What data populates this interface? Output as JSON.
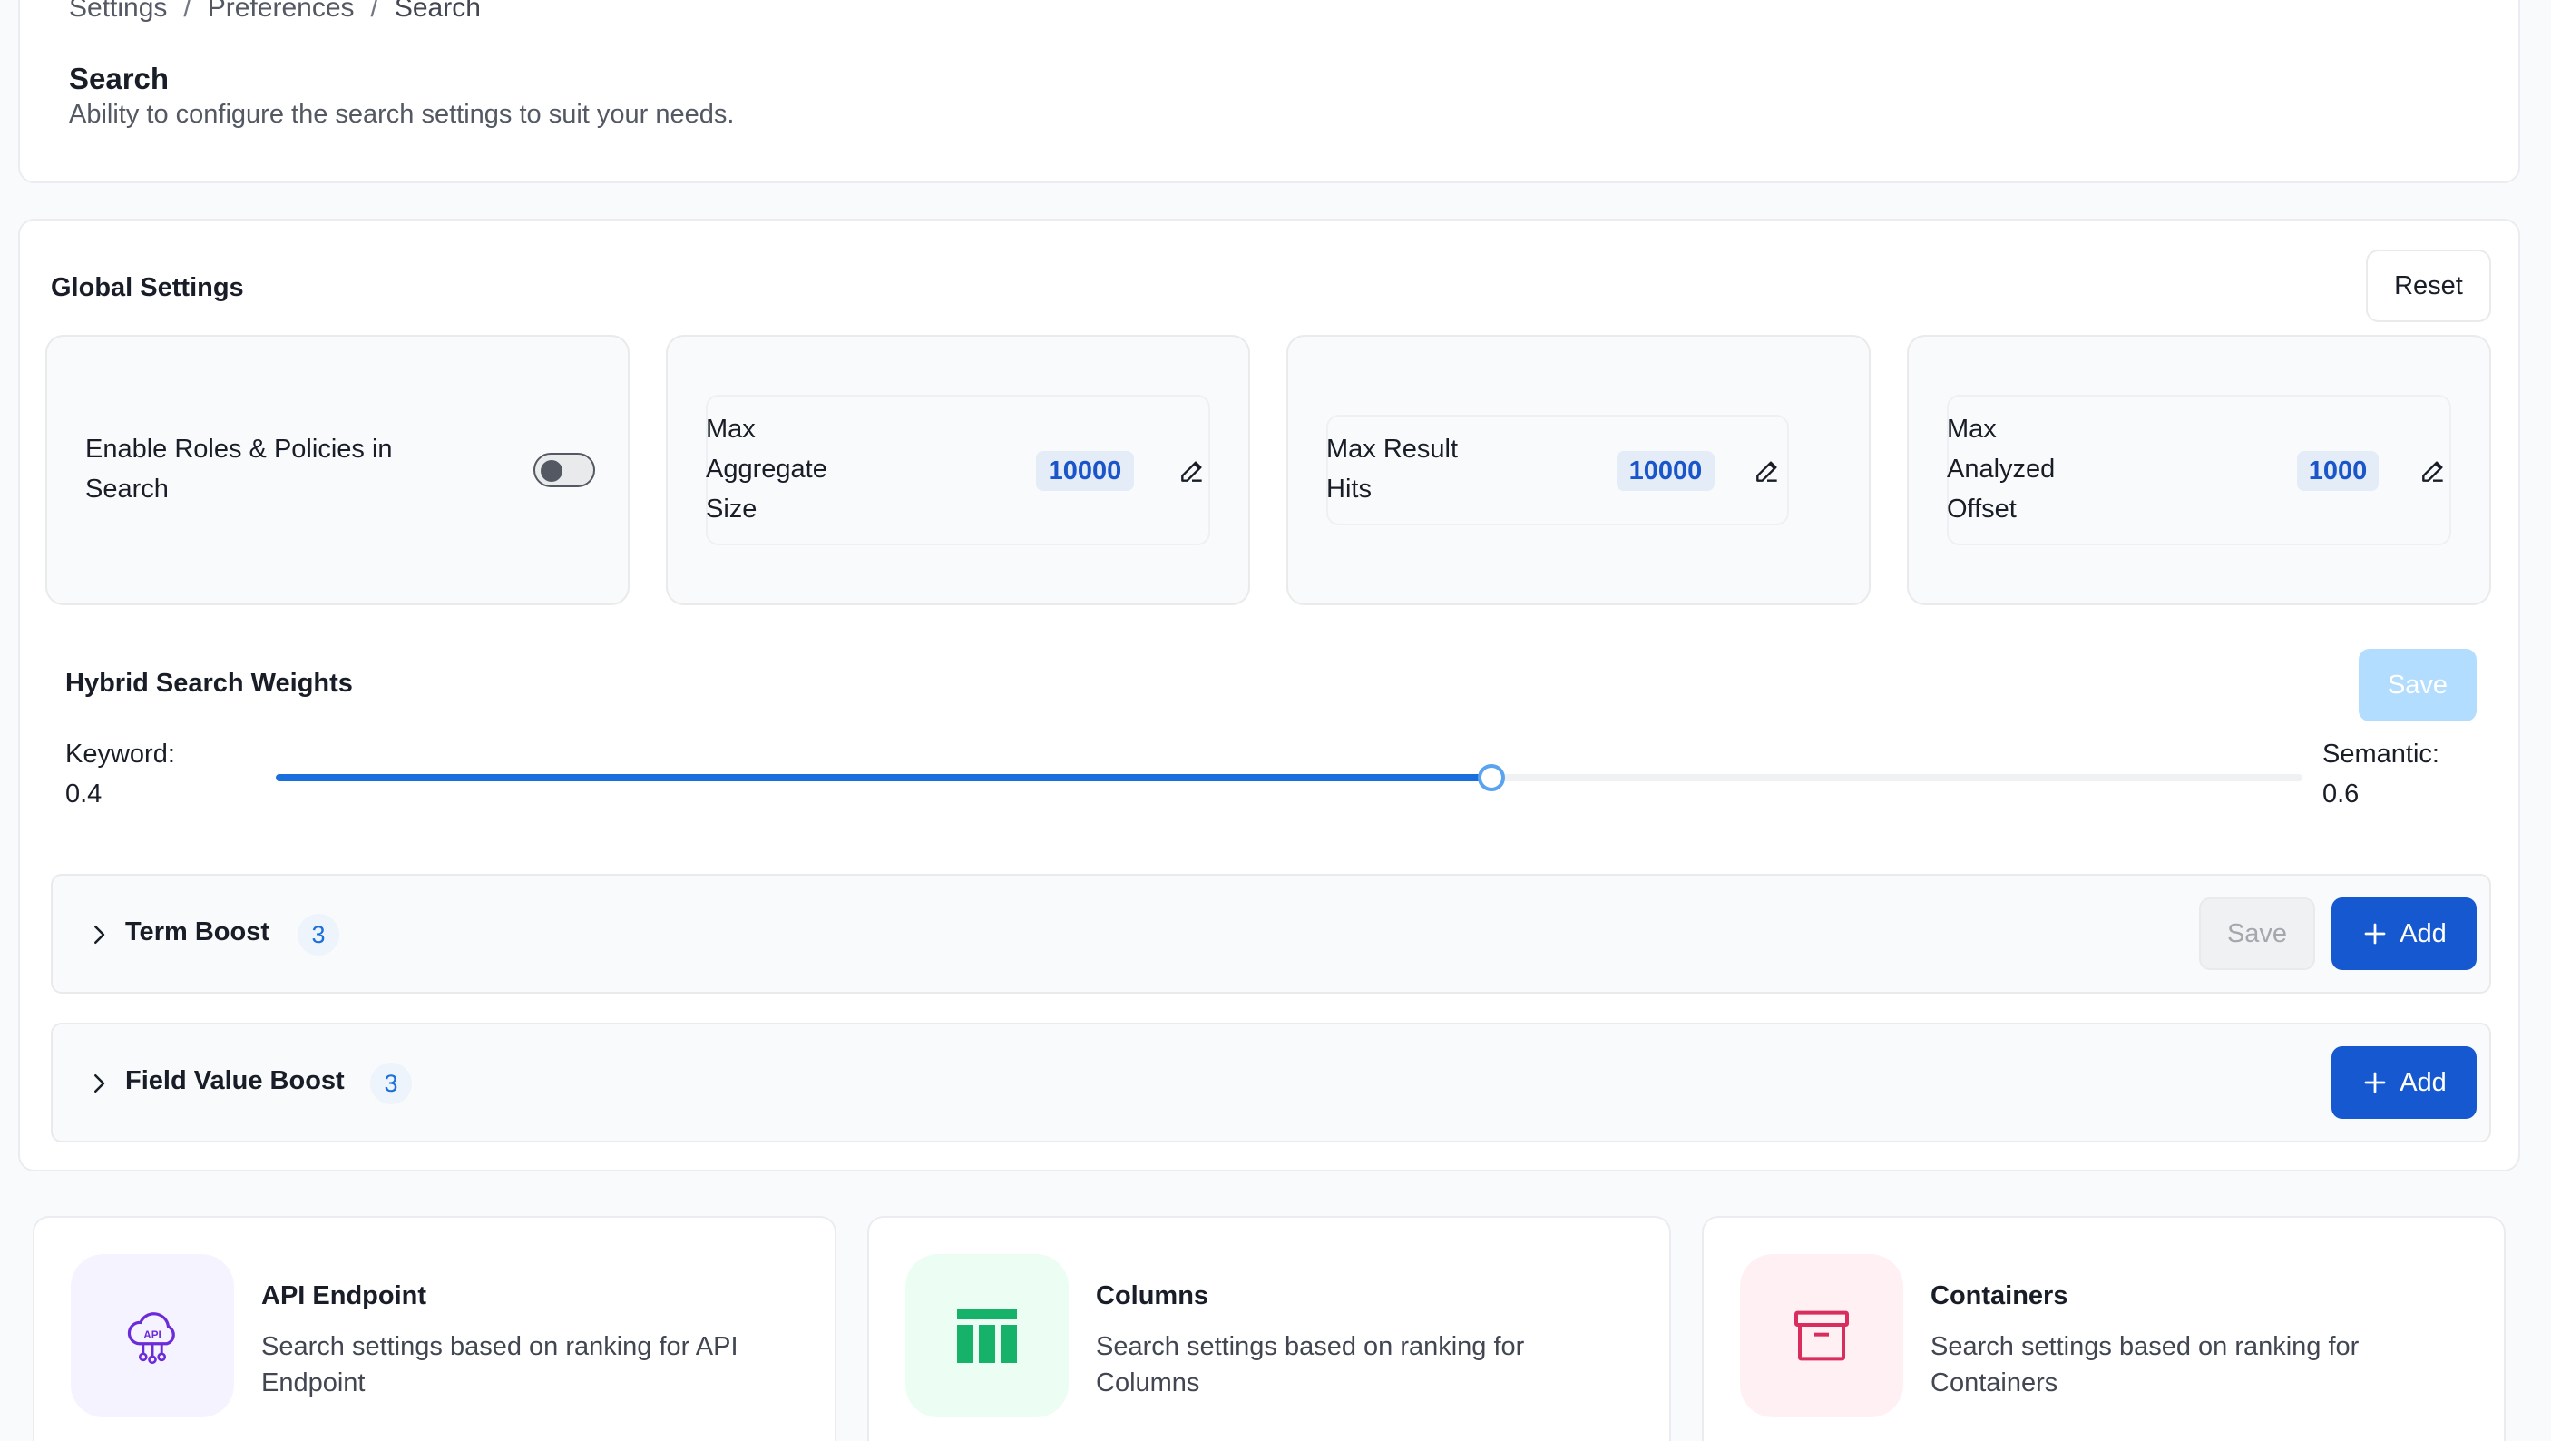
{
  "breadcrumb": [
    "Settings",
    "Preferences",
    "Search"
  ],
  "header": {
    "title": "Search",
    "description": "Ability to configure the search settings to suit your needs."
  },
  "global_settings": {
    "title": "Global Settings",
    "reset_label": "Reset",
    "roles_toggle": {
      "label": "Enable Roles & Policies in Search",
      "enabled": false
    },
    "max_aggregate_size": {
      "label": "Max Aggregate Size",
      "value": "10000"
    },
    "max_result_hits": {
      "label": "Max Result Hits",
      "value": "10000"
    },
    "max_analyzed_offset": {
      "label": "Max Analyzed Offset",
      "value": "1000"
    }
  },
  "hybrid_weights": {
    "title": "Hybrid Search Weights",
    "save_label": "Save",
    "keyword_label": "Keyword:",
    "keyword_value": "0.4",
    "semantic_label": "Semantic:",
    "semantic_value": "0.6",
    "slider_fraction": 0.6
  },
  "term_boost": {
    "title": "Term Boost",
    "count": "3",
    "save_label": "Save",
    "add_label": "Add"
  },
  "field_value_boost": {
    "title": "Field Value Boost",
    "count": "3",
    "add_label": "Add"
  },
  "entity_cards": [
    {
      "title": "API Endpoint",
      "description": "Search settings based on ranking for API Endpoint",
      "icon": "api-cloud-icon",
      "tint": "#f4f3ff"
    },
    {
      "title": "Columns",
      "description": "Search settings based on ranking for Columns",
      "icon": "table-columns-icon",
      "tint": "#ecfdf3"
    },
    {
      "title": "Containers",
      "description": "Search settings based on ranking for Containers",
      "icon": "container-box-icon",
      "tint": "#fff1f3"
    }
  ],
  "colors": {
    "accent": "#1558d0",
    "slider": "#1a6fdc",
    "badge_text": "#1a56c9"
  }
}
